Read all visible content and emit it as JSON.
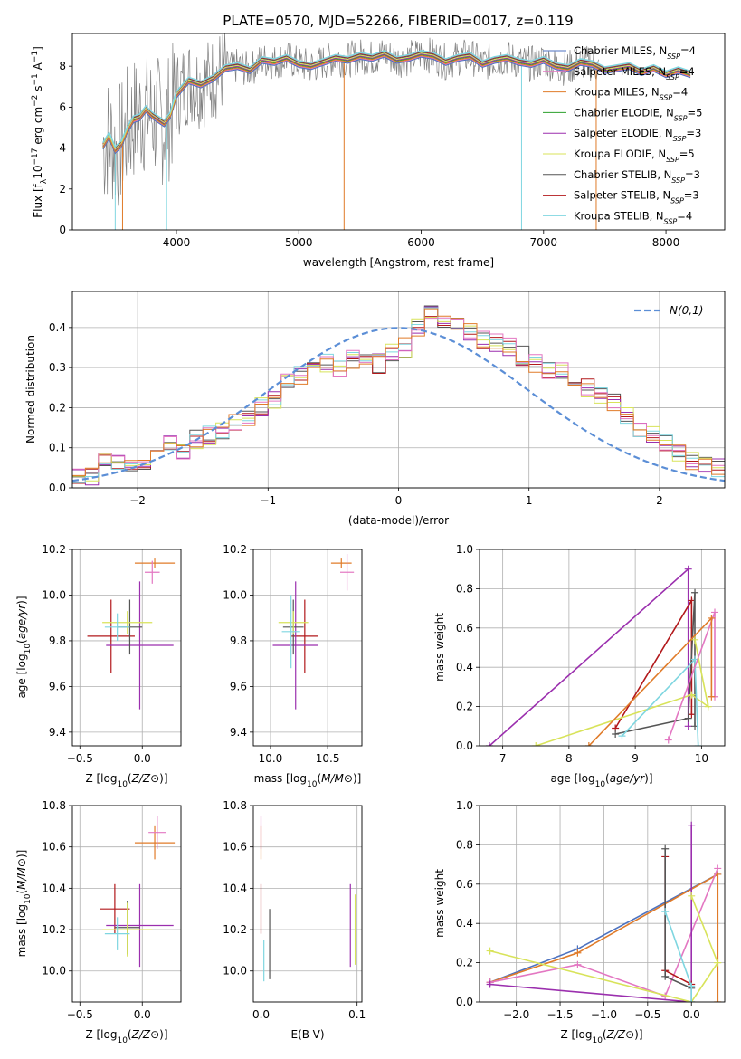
{
  "figure_title": "PLATE=0570, MJD=52266, FIBERID=0017, z=0.119",
  "chart_data": [
    {
      "id": "spectrum",
      "type": "line",
      "xlabel": "wavelength [Angstrom, rest frame]",
      "ylabel": "Flux [f",
      "ylabel_unit": "10",
      "xlim": [
        3150,
        8480
      ],
      "ylim": [
        0,
        9.6
      ],
      "xticks": [
        4000,
        5000,
        6000,
        7000,
        8000
      ],
      "yticks": [
        0,
        2,
        4,
        6,
        8
      ],
      "legend_position": "upper-right",
      "legend": [
        {
          "name": "Chabrier MILES, N",
          "n": "=4",
          "color": "#4c72c0"
        },
        {
          "name": "Salpeter MILES, N",
          "n": "=4",
          "color": "#e377c2"
        },
        {
          "name": "Kroupa MILES, N",
          "n": "=4",
          "color": "#e07b29"
        },
        {
          "name": "Chabrier ELODIE, N",
          "n": "=5",
          "color": "#2ca02c"
        },
        {
          "name": "Salpeter ELODIE, N",
          "n": "=3",
          "color": "#9b2fae"
        },
        {
          "name": "Kroupa ELODIE, N",
          "n": "=5",
          "color": "#d8e35a"
        },
        {
          "name": "Chabrier STELIB, N",
          "n": "=3",
          "color": "#555555"
        },
        {
          "name": "Salpeter STELIB, N",
          "n": "=3",
          "color": "#b2181b"
        },
        {
          "name": "Kroupa STELIB, N",
          "n": "=4",
          "color": "#7fd6e0"
        }
      ],
      "data_color": "#808080",
      "model_x": [
        3400,
        3450,
        3500,
        3550,
        3600,
        3650,
        3700,
        3750,
        3800,
        3850,
        3900,
        3950,
        4000,
        4100,
        4200,
        4300,
        4400,
        4500,
        4600,
        4700,
        4800,
        4900,
        5000,
        5100,
        5200,
        5300,
        5400,
        5500,
        5600,
        5700,
        5800,
        5900,
        6000,
        6100,
        6200,
        6300,
        6400,
        6500,
        6600,
        6700,
        6800,
        6900,
        7000,
        7100,
        7200,
        7300,
        7400,
        7500,
        7600,
        7700,
        7800,
        7900,
        8000,
        8100,
        8200
      ],
      "model_y": [
        4.1,
        4.6,
        3.9,
        4.2,
        4.9,
        5.4,
        5.5,
        5.9,
        5.6,
        5.4,
        5.2,
        5.6,
        6.6,
        7.3,
        7.1,
        7.4,
        7.9,
        8.0,
        7.8,
        8.3,
        8.2,
        8.4,
        8.1,
        8.0,
        8.2,
        8.4,
        8.3,
        8.5,
        8.4,
        8.6,
        8.3,
        8.4,
        8.6,
        8.5,
        8.2,
        8.4,
        8.5,
        8.1,
        8.3,
        8.4,
        8.2,
        8.1,
        8.3,
        8.0,
        7.9,
        8.2,
        8.1,
        7.8,
        7.9,
        8.0,
        7.7,
        7.9,
        7.6,
        7.8,
        7.6
      ]
    },
    {
      "id": "residuals",
      "type": "area",
      "xlabel": "(data-model)/error",
      "ylabel": "Normed distribution",
      "xlim": [
        -2.5,
        2.5
      ],
      "ylim": [
        0,
        0.49
      ],
      "xticks": [
        -2,
        -1,
        0,
        1,
        2
      ],
      "yticks": [
        0.0,
        0.1,
        0.2,
        0.3,
        0.4
      ],
      "grid": true,
      "legend_position": "upper-right",
      "legend": [
        {
          "name": "N(0,1)",
          "color": "#5b8ed6"
        }
      ],
      "bin_width": 0.1,
      "bins_start": -2.5,
      "histogram_values": [
        0.03,
        0.03,
        0.07,
        0.07,
        0.06,
        0.07,
        0.08,
        0.11,
        0.09,
        0.12,
        0.13,
        0.14,
        0.16,
        0.18,
        0.2,
        0.22,
        0.26,
        0.28,
        0.3,
        0.31,
        0.3,
        0.32,
        0.33,
        0.31,
        0.34,
        0.35,
        0.4,
        0.43,
        0.41,
        0.4,
        0.39,
        0.37,
        0.36,
        0.35,
        0.33,
        0.31,
        0.29,
        0.29,
        0.27,
        0.25,
        0.23,
        0.21,
        0.18,
        0.15,
        0.13,
        0.11,
        0.09,
        0.07,
        0.06,
        0.05
      ]
    },
    {
      "id": "age_vs_Z",
      "type": "scatter",
      "xlabel": "Z [log",
      "ylabel": "age  [log",
      "xlim": [
        -0.56,
        0.31
      ],
      "ylim": [
        9.34,
        10.2
      ],
      "xticks": [
        -0.5,
        0.0
      ],
      "yticks": [
        9.4,
        9.6,
        9.8,
        10.0,
        10.2
      ],
      "grid": true,
      "points": [
        {
          "x": -0.25,
          "y": 9.82,
          "xerr": 0.19,
          "yerr": 0.16,
          "color": "#b2181b"
        },
        {
          "x": -0.02,
          "y": 9.78,
          "xerr": 0.27,
          "yerr": 0.28,
          "color": "#9b2fae"
        },
        {
          "x": 0.1,
          "y": 10.14,
          "xerr": 0.16,
          "yerr": 0.02,
          "color": "#e07b29"
        },
        {
          "x": 0.08,
          "y": 10.1,
          "xerr": 0.06,
          "yerr": 0.05,
          "color": "#e377c2"
        },
        {
          "x": -0.1,
          "y": 9.86,
          "xerr": 0.1,
          "yerr": 0.12,
          "color": "#555555"
        },
        {
          "x": -0.12,
          "y": 9.88,
          "xerr": 0.2,
          "yerr": 0.05,
          "color": "#d8e35a"
        },
        {
          "x": -0.2,
          "y": 9.86,
          "xerr": 0.1,
          "yerr": 0.06,
          "color": "#7fd6e0"
        }
      ]
    },
    {
      "id": "age_vs_mass",
      "type": "scatter",
      "xlabel": "mass [log",
      "xlim": [
        9.85,
        10.8
      ],
      "ylim": [
        9.34,
        10.2
      ],
      "xticks": [
        10.0,
        10.5
      ],
      "yticks": [
        9.4,
        9.6,
        9.8,
        10.0,
        10.2
      ],
      "grid": true,
      "points": [
        {
          "x": 10.3,
          "y": 9.82,
          "xerr": 0.12,
          "yerr": 0.16,
          "color": "#b2181b"
        },
        {
          "x": 10.22,
          "y": 9.78,
          "xerr": 0.2,
          "yerr": 0.28,
          "color": "#9b2fae"
        },
        {
          "x": 10.62,
          "y": 10.14,
          "xerr": 0.09,
          "yerr": 0.02,
          "color": "#e07b29"
        },
        {
          "x": 10.67,
          "y": 10.1,
          "xerr": 0.06,
          "yerr": 0.08,
          "color": "#e377c2"
        },
        {
          "x": 10.2,
          "y": 9.86,
          "xerr": 0.09,
          "yerr": 0.12,
          "color": "#555555"
        },
        {
          "x": 10.2,
          "y": 9.88,
          "xerr": 0.13,
          "yerr": 0.05,
          "color": "#d8e35a"
        },
        {
          "x": 10.18,
          "y": 9.84,
          "xerr": 0.08,
          "yerr": 0.16,
          "color": "#7fd6e0"
        }
      ]
    },
    {
      "id": "mass_weight_vs_age",
      "type": "line",
      "xlabel": "age  [log",
      "ylabel": "mass weight",
      "xlim": [
        6.65,
        10.35
      ],
      "ylim": [
        0,
        1.0
      ],
      "xticks": [
        7,
        8,
        9,
        10
      ],
      "yticks": [
        0.0,
        0.2,
        0.4,
        0.6,
        0.8,
        1.0
      ],
      "grid": true,
      "series": [
        {
          "color": "#9b2fae",
          "x": [
            6.8,
            9.8,
            9.8
          ],
          "y": [
            0.0,
            0.9,
            0.1
          ]
        },
        {
          "color": "#b2181b",
          "x": [
            8.7,
            9.85,
            9.85
          ],
          "y": [
            0.09,
            0.74,
            0.16
          ]
        },
        {
          "color": "#555555",
          "x": [
            8.7,
            9.8,
            9.9,
            9.9
          ],
          "y": [
            0.06,
            0.14,
            0.78,
            0.1
          ]
        },
        {
          "color": "#d8e35a",
          "x": [
            7.5,
            9.85,
            10.1,
            9.9
          ],
          "y": [
            0.0,
            0.26,
            0.2,
            0.54
          ]
        },
        {
          "color": "#7fd6e0",
          "x": [
            8.8,
            9.9,
            9.95
          ],
          "y": [
            0.05,
            0.44,
            0.0
          ]
        },
        {
          "color": "#e377c2",
          "x": [
            9.5,
            10.2,
            10.2
          ],
          "y": [
            0.03,
            0.68,
            0.25
          ]
        },
        {
          "color": "#e07b29",
          "x": [
            8.3,
            10.15,
            10.15
          ],
          "y": [
            0.0,
            0.65,
            0.25
          ]
        }
      ]
    },
    {
      "id": "mass_vs_Z",
      "type": "scatter",
      "xlabel": "Z [log",
      "ylabel": "mass [log",
      "xlim": [
        -0.56,
        0.31
      ],
      "ylim": [
        9.85,
        10.8
      ],
      "xticks": [
        -0.5,
        0.0
      ],
      "yticks": [
        10.0,
        10.2,
        10.4,
        10.6,
        10.8
      ],
      "grid": true,
      "points": [
        {
          "x": -0.22,
          "y": 10.3,
          "xerr": 0.12,
          "yerr": 0.12,
          "color": "#b2181b"
        },
        {
          "x": -0.02,
          "y": 10.22,
          "xerr": 0.27,
          "yerr": 0.2,
          "color": "#9b2fae"
        },
        {
          "x": 0.1,
          "y": 10.62,
          "xerr": 0.16,
          "yerr": 0.08,
          "color": "#e07b29"
        },
        {
          "x": 0.12,
          "y": 10.67,
          "xerr": 0.07,
          "yerr": 0.08,
          "color": "#e377c2"
        },
        {
          "x": -0.12,
          "y": 10.21,
          "xerr": 0.1,
          "yerr": 0.13,
          "color": "#555555"
        },
        {
          "x": -0.12,
          "y": 10.2,
          "xerr": 0.2,
          "yerr": 0.13,
          "color": "#d8e35a"
        },
        {
          "x": -0.2,
          "y": 10.18,
          "xerr": 0.1,
          "yerr": 0.08,
          "color": "#7fd6e0"
        }
      ]
    },
    {
      "id": "mass_vs_ebv",
      "type": "scatter",
      "xlabel": "E(B-V)",
      "xlim": [
        -0.008,
        0.105
      ],
      "ylim": [
        9.85,
        10.8
      ],
      "xticks": [
        0.0,
        0.1
      ],
      "yticks": [
        10.0,
        10.2,
        10.4,
        10.6,
        10.8
      ],
      "grid": true,
      "points": [
        {
          "x": 0.0,
          "y": 10.3,
          "xerr": 0,
          "yerr": 0.12,
          "color": "#b2181b"
        },
        {
          "x": 0.093,
          "y": 10.22,
          "xerr": 0,
          "yerr": 0.2,
          "color": "#9b2fae"
        },
        {
          "x": 0.0,
          "y": 10.62,
          "xerr": 0,
          "yerr": 0.08,
          "color": "#e07b29"
        },
        {
          "x": 0.0,
          "y": 10.67,
          "xerr": 0,
          "yerr": 0.08,
          "color": "#e377c2"
        },
        {
          "x": 0.009,
          "y": 10.13,
          "xerr": 0,
          "yerr": 0.17,
          "color": "#555555"
        },
        {
          "x": 0.098,
          "y": 10.2,
          "xerr": 0,
          "yerr": 0.17,
          "color": "#d8e35a"
        },
        {
          "x": 0.003,
          "y": 10.05,
          "xerr": 0,
          "yerr": 0.1,
          "color": "#7fd6e0"
        }
      ]
    },
    {
      "id": "mass_weight_vs_Z",
      "type": "line",
      "xlabel": "Z [log",
      "ylabel": "mass weight",
      "xlim": [
        -2.42,
        0.38
      ],
      "ylim": [
        0,
        1.0
      ],
      "xticks": [
        -2.0,
        -1.5,
        -1.0,
        -0.5,
        0.0
      ],
      "yticks": [
        0.0,
        0.2,
        0.4,
        0.6,
        0.8,
        1.0
      ],
      "grid": true,
      "series": [
        {
          "color": "#4c72c0",
          "x": [
            -2.3,
            -1.3,
            0.3
          ],
          "y": [
            0.1,
            0.27,
            0.65
          ]
        },
        {
          "color": "#e07b29",
          "x": [
            -2.3,
            -1.3,
            0.3,
            0.3
          ],
          "y": [
            0.1,
            0.25,
            0.65,
            0.0
          ]
        },
        {
          "color": "#e377c2",
          "x": [
            -2.3,
            -1.3,
            -0.3,
            0.3
          ],
          "y": [
            0.1,
            0.19,
            0.03,
            0.68
          ]
        },
        {
          "color": "#9b2fae",
          "x": [
            -2.3,
            0.0,
            0.0
          ],
          "y": [
            0.09,
            0.0,
            0.9
          ]
        },
        {
          "color": "#b2181b",
          "x": [
            -0.3,
            -0.3,
            0.0
          ],
          "y": [
            0.74,
            0.16,
            0.09
          ]
        },
        {
          "color": "#555555",
          "x": [
            -0.3,
            -0.3,
            0.0
          ],
          "y": [
            0.78,
            0.13,
            0.07
          ]
        },
        {
          "color": "#d8e35a",
          "x": [
            -2.3,
            0.0,
            0.3,
            0.0
          ],
          "y": [
            0.26,
            0.0,
            0.2,
            0.54
          ]
        },
        {
          "color": "#7fd6e0",
          "x": [
            -0.3,
            0.0,
            0.0
          ],
          "y": [
            0.46,
            0.08,
            0.0
          ]
        }
      ]
    }
  ]
}
